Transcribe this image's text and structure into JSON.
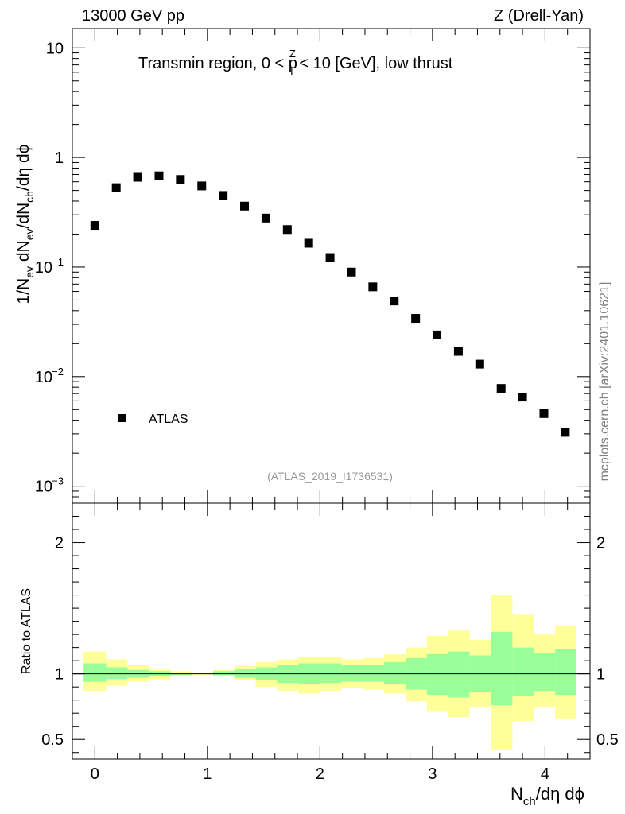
{
  "header": {
    "energy_label": "13000 GeV pp",
    "process_label": "Z (Drell-Yan)"
  },
  "side_label": "mcplots.cern.ch [arXiv:2401.10621]",
  "chart_data": [
    {
      "type": "scatter",
      "title": "Transmin region, 0 < p_T^Z < 10 [GeV], low thrust",
      "title_parts": {
        "pre": "Transmin region, 0 < p",
        "sup": "Z",
        "sub": "T",
        "post": " < 10 [GeV], low thrust"
      },
      "ylabel_parts": [
        "1/N",
        "ev",
        " dN",
        "ev",
        "/dN",
        "ch",
        "/dη dϕ"
      ],
      "yscale": "log",
      "ylim": [
        0.0007,
        15
      ],
      "xlim": [
        -0.2,
        4.4
      ],
      "ytick_labels": [
        {
          "value": 10,
          "base": "10",
          "exp": ""
        },
        {
          "value": 1,
          "base": "1",
          "exp": ""
        },
        {
          "value": 0.1,
          "base": "10",
          "exp": "−1"
        },
        {
          "value": 0.01,
          "base": "10",
          "exp": "−2"
        },
        {
          "value": 0.001,
          "base": "10",
          "exp": "−3"
        }
      ],
      "legend": {
        "label": "ATLAS",
        "position": "bottom-left"
      },
      "analysis_label": "(ATLAS_2019_I1736531)",
      "series": [
        {
          "name": "ATLAS",
          "x": [
            0.0,
            0.19,
            0.38,
            0.57,
            0.76,
            0.95,
            1.14,
            1.33,
            1.52,
            1.71,
            1.9,
            2.09,
            2.28,
            2.47,
            2.66,
            2.85,
            3.04,
            3.23,
            3.42,
            3.61,
            3.8,
            3.99,
            4.18
          ],
          "y": [
            0.24,
            0.53,
            0.66,
            0.68,
            0.63,
            0.55,
            0.45,
            0.36,
            0.28,
            0.22,
            0.165,
            0.122,
            0.09,
            0.066,
            0.049,
            0.034,
            0.024,
            0.017,
            0.013,
            0.0078,
            0.0065,
            0.0046,
            0.0031
          ]
        }
      ]
    },
    {
      "type": "area",
      "ylabel": "Ratio to ATLAS",
      "xlabel_parts": [
        "N",
        "ch",
        "/dη dϕ"
      ],
      "xlim": [
        -0.2,
        4.4
      ],
      "ylim": [
        0.35,
        2.3
      ],
      "x_ticks": [
        0,
        1,
        2,
        3,
        4
      ],
      "x_tick_labels": [
        "0",
        "1",
        "2",
        "3",
        "4"
      ],
      "y_ticks": [
        0.5,
        1,
        2
      ],
      "y_tick_labels": [
        "0.5",
        "1",
        "2"
      ],
      "reference_line": 1,
      "bin_edges": [
        -0.1,
        0.1,
        0.29,
        0.48,
        0.67,
        0.86,
        1.05,
        1.24,
        1.43,
        1.62,
        1.81,
        2.0,
        2.19,
        2.38,
        2.57,
        2.76,
        2.95,
        3.14,
        3.33,
        3.52,
        3.71,
        3.9,
        4.09,
        4.28
      ],
      "bands": [
        {
          "name": "outer",
          "color": "#ffff99",
          "lower": [
            0.87,
            0.91,
            0.94,
            0.96,
            0.98,
            0.99,
            0.98,
            0.95,
            0.9,
            0.87,
            0.85,
            0.87,
            0.89,
            0.88,
            0.85,
            0.79,
            0.71,
            0.67,
            0.75,
            0.42,
            0.64,
            0.75,
            0.66
          ],
          "upper": [
            1.17,
            1.11,
            1.07,
            1.04,
            1.02,
            1.01,
            1.03,
            1.06,
            1.09,
            1.11,
            1.13,
            1.13,
            1.11,
            1.12,
            1.15,
            1.2,
            1.29,
            1.33,
            1.26,
            1.6,
            1.45,
            1.3,
            1.37
          ]
        },
        {
          "name": "inner",
          "color": "#99ff99",
          "lower": [
            0.94,
            0.96,
            0.97,
            0.98,
            0.99,
            1.0,
            0.99,
            0.97,
            0.95,
            0.93,
            0.92,
            0.93,
            0.94,
            0.94,
            0.92,
            0.88,
            0.84,
            0.82,
            0.86,
            0.76,
            0.83,
            0.87,
            0.84
          ],
          "upper": [
            1.08,
            1.05,
            1.03,
            1.02,
            1.01,
            1.0,
            1.02,
            1.04,
            1.05,
            1.07,
            1.08,
            1.08,
            1.07,
            1.07,
            1.09,
            1.12,
            1.15,
            1.17,
            1.14,
            1.32,
            1.2,
            1.16,
            1.19
          ]
        }
      ]
    }
  ]
}
